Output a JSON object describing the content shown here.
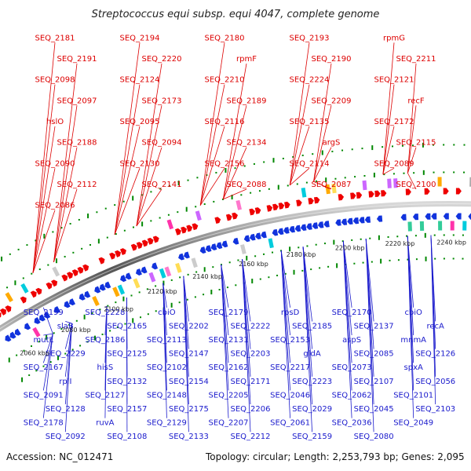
{
  "title": "Streptococcus equi subsp. equi 4047, complete genome",
  "footer": {
    "accession": "Accession: NC_012471",
    "summary": "Topology: circular; Length: 2,253,793 bp; Genes: 2,095"
  },
  "colors": {
    "forward_strand": "#ee0000",
    "reverse_strand": "#1133dd",
    "top_labels": "#dd0000",
    "bottom_labels": "#1a1acc",
    "tick_marks": "#008800"
  },
  "kbp_ticks": [
    "2060 kbp",
    "2080 kbp",
    "2100 kbp",
    "2120 kbp",
    "2140 kbp",
    "2160 kbp",
    "2180 kbp",
    "2200 kbp",
    "2220 kbp",
    "2240 kbp"
  ],
  "top_labels": [
    "SEQ_2181",
    "SEQ_2194",
    "SEQ_2180",
    "SEQ_2193",
    "rpmG",
    "SEQ_2191",
    "SEQ_2220",
    "rpmF",
    "SEQ_2190",
    "SEQ_2211",
    "SEQ_2098",
    "SEQ_2124",
    "SEQ_2210",
    "SEQ_2224",
    "SEQ_2121",
    "SEQ_2097",
    "SEQ_2173",
    "SEQ_2189",
    "SEQ_2209",
    "recF",
    "hslO",
    "SEQ_2095",
    "SEQ_2116",
    "SEQ_2135",
    "SEQ_2172",
    "SEQ_2188",
    "SEQ_2094",
    "SEQ_2134",
    "argS",
    "SEQ_2115",
    "SEQ_2090",
    "SEQ_2130",
    "SEQ_2156",
    "SEQ_2114",
    "SEQ_2089",
    "SEQ_2112",
    "SEQ_2141",
    "SEQ_2088",
    "SEQ_2087",
    "SEQ_2100",
    "SEQ_2086"
  ],
  "bottom_labels": [
    "SEQ_2199",
    "SEQ_2228",
    "cbiO",
    "SEQ_2179",
    "rpsD",
    "SEQ_2170",
    "cbiO",
    "slaB",
    "SEQ_2165",
    "SEQ_2202",
    "SEQ_2222",
    "SEQ_2185",
    "SEQ_2137",
    "recA",
    "mutL",
    "SEQ_2186",
    "SEQ_2113",
    "SEQ_2131",
    "SEQ_2153",
    "aspS",
    "mnmA",
    "SEQ_2229",
    "SEQ_2125",
    "SEQ_2147",
    "SEQ_2203",
    "gldA",
    "SEQ_2085",
    "SEQ_2126",
    "SEQ_2167",
    "hisS",
    "SEQ_2102",
    "SEQ_2162",
    "SEQ_2217",
    "SEQ_2073",
    "spxA",
    "rplI",
    "SEQ_2132",
    "SEQ_2154",
    "SEQ_2171",
    "SEQ_2223",
    "SEQ_2107",
    "SEQ_2056",
    "SEQ_2091",
    "SEQ_2127",
    "SEQ_2148",
    "SEQ_2205",
    "SEQ_2046",
    "SEQ_2062",
    "SEQ_2101",
    "SEQ_2128",
    "SEQ_2157",
    "SEQ_2175",
    "SEQ_2206",
    "SEQ_2029",
    "SEQ_2045",
    "SEQ_2103",
    "SEQ_2178",
    "ruvA",
    "SEQ_2129",
    "SEQ_2207",
    "SEQ_2061",
    "SEQ_2036",
    "SEQ_2049",
    "SEQ_2092",
    "SEQ_2108",
    "SEQ_2133",
    "SEQ_2212",
    "SEQ_2159",
    "SEQ_2080"
  ]
}
